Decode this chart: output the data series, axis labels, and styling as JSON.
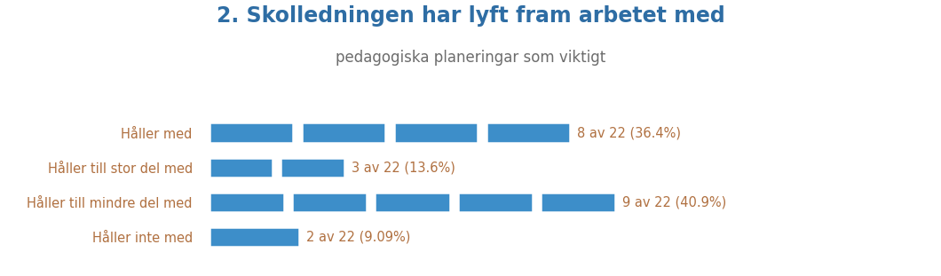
{
  "title_line1": "2. Skolledningen har lyft fram arbetet med",
  "title_line2": "pedagogiska planeringar som viktigt",
  "categories": [
    "Håller med",
    "Håller till stor del med",
    "Håller till mindre del med",
    "Håller inte med"
  ],
  "values": [
    8,
    3,
    9,
    2
  ],
  "segments": [
    4,
    2,
    5,
    1
  ],
  "total": 22,
  "labels": [
    "8 av 22 (36.4%)",
    "3 av 22 (13.6%)",
    "9 av 22 (40.9%)",
    "2 av 22 (9.09%)"
  ],
  "bar_color": "#3d8ec9",
  "title_color": "#2e6da4",
  "subtitle_color": "#6c6c6c",
  "label_color": "#b07040",
  "category_color": "#b07040",
  "bg_color": "#ffffff",
  "bar_height": 0.58,
  "figsize": [
    10.6,
    3.11
  ],
  "dpi": 100
}
